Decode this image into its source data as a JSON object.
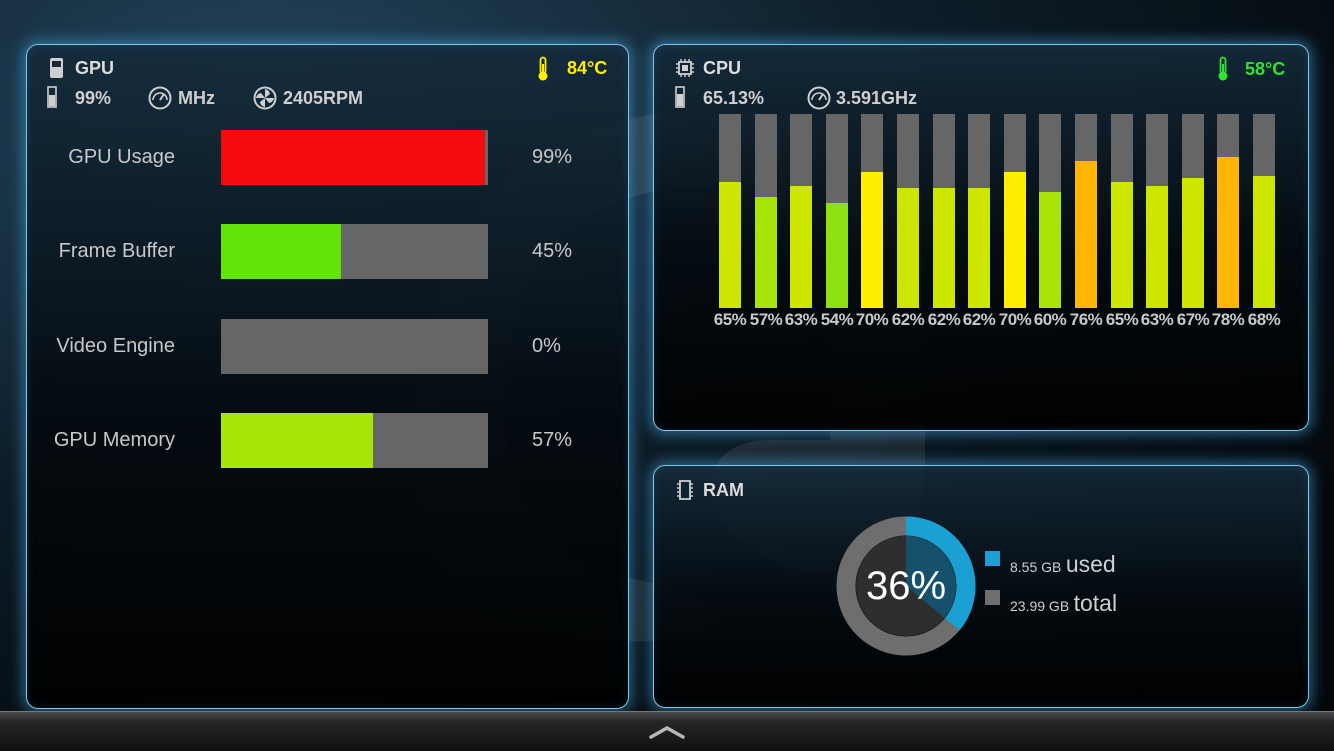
{
  "gpu": {
    "title": "GPU",
    "temperature": "84°C",
    "temperature_color": "#ffee00",
    "stat_usage": "99%",
    "stat_clock": "MHz",
    "stat_fan": "2405RPM",
    "bars": [
      {
        "label": "GPU Usage",
        "value": "99%",
        "fraction": 0.99,
        "color": "#f40c0c"
      },
      {
        "label": "Frame Buffer",
        "value": "45%",
        "fraction": 0.45,
        "color": "#62e40a"
      },
      {
        "label": "Video Engine",
        "value": "0%",
        "fraction": 0.0,
        "color": "#62e40a"
      },
      {
        "label": "GPU Memory",
        "value": "57%",
        "fraction": 0.57,
        "color": "#a8e60a"
      }
    ]
  },
  "cpu": {
    "title": "CPU",
    "temperature": "58°C",
    "temperature_color": "#2fe42f",
    "stat_usage": "65.13%",
    "stat_clock": "3.591GHz",
    "cores": [
      {
        "label": "65%",
        "value": 65
      },
      {
        "label": "57%",
        "value": 57
      },
      {
        "label": "63%",
        "value": 63
      },
      {
        "label": "54%",
        "value": 54
      },
      {
        "label": "70%",
        "value": 70
      },
      {
        "label": "62%",
        "value": 62
      },
      {
        "label": "62%",
        "value": 62
      },
      {
        "label": "62%",
        "value": 62
      },
      {
        "label": "70%",
        "value": 70
      },
      {
        "label": "60%",
        "value": 60
      },
      {
        "label": "76%",
        "value": 76
      },
      {
        "label": "65%",
        "value": 65
      },
      {
        "label": "63%",
        "value": 63
      },
      {
        "label": "67%",
        "value": 67
      },
      {
        "label": "78%",
        "value": 78
      },
      {
        "label": "68%",
        "value": 68
      }
    ]
  },
  "ram": {
    "title": "RAM",
    "percent_label": "36%",
    "percent": 36,
    "used_amount": "8.55 GB",
    "used_label": "used",
    "total_amount": "23.99 GB",
    "total_label": "total",
    "used_color": "#1aa0d2",
    "total_color": "#6e6e6e"
  }
}
